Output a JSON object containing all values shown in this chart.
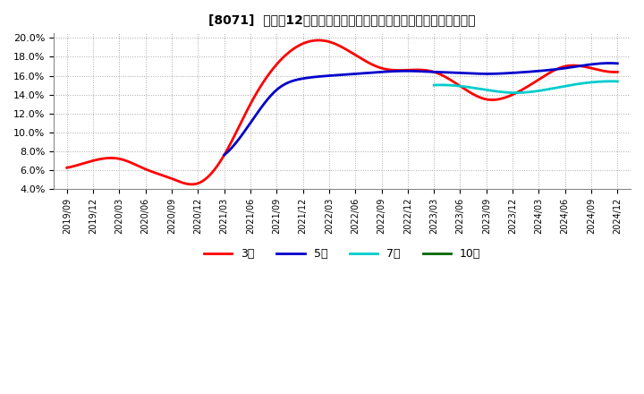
{
  "title": "[8071]  売上高12か月移動合計の対前年同期増減率の標準偏差の推移",
  "ylim": [
    0.04,
    0.205
  ],
  "yticks": [
    0.04,
    0.06,
    0.08,
    0.1,
    0.12,
    0.14,
    0.16,
    0.18,
    0.2
  ],
  "background_color": "#ffffff",
  "plot_bg_color": "#ffffff",
  "grid_color": "#aaaaaa",
  "series": {
    "3年": {
      "color": "#ff0000",
      "data": [
        [
          "2019/09",
          0.0625
        ],
        [
          "2019/12",
          0.07
        ],
        [
          "2020/03",
          0.072
        ],
        [
          "2020/06",
          0.061
        ],
        [
          "2020/09",
          0.051
        ],
        [
          "2020/12",
          0.046
        ],
        [
          "2021/03",
          0.076
        ],
        [
          "2021/06",
          0.13
        ],
        [
          "2021/09",
          0.172
        ],
        [
          "2021/12",
          0.194
        ],
        [
          "2022/03",
          0.196
        ],
        [
          "2022/06",
          0.182
        ],
        [
          "2022/09",
          0.168
        ],
        [
          "2022/12",
          0.166
        ],
        [
          "2023/03",
          0.164
        ],
        [
          "2023/06",
          0.149
        ],
        [
          "2023/09",
          0.135
        ],
        [
          "2023/12",
          0.14
        ],
        [
          "2024/03",
          0.156
        ],
        [
          "2024/06",
          0.17
        ],
        [
          "2024/09",
          0.168
        ],
        [
          "2024/12",
          0.164
        ]
      ]
    },
    "5年": {
      "color": "#0000cc",
      "data": [
        [
          "2021/03",
          0.076
        ],
        [
          "2021/06",
          0.11
        ],
        [
          "2021/09",
          0.145
        ],
        [
          "2021/12",
          0.157
        ],
        [
          "2022/03",
          0.16
        ],
        [
          "2022/06",
          0.162
        ],
        [
          "2022/09",
          0.164
        ],
        [
          "2022/12",
          0.165
        ],
        [
          "2023/03",
          0.164
        ],
        [
          "2023/06",
          0.163
        ],
        [
          "2023/09",
          0.162
        ],
        [
          "2023/12",
          0.163
        ],
        [
          "2024/03",
          0.165
        ],
        [
          "2024/06",
          0.168
        ],
        [
          "2024/09",
          0.172
        ],
        [
          "2024/12",
          0.173
        ]
      ]
    },
    "7年": {
      "color": "#00cccc",
      "data": [
        [
          "2023/03",
          0.15
        ],
        [
          "2023/06",
          0.149
        ],
        [
          "2023/09",
          0.145
        ],
        [
          "2023/12",
          0.142
        ],
        [
          "2024/03",
          0.144
        ],
        [
          "2024/06",
          0.149
        ],
        [
          "2024/09",
          0.153
        ],
        [
          "2024/12",
          0.154
        ]
      ]
    },
    "10年": {
      "color": "#006600",
      "data": []
    }
  },
  "xtick_labels": [
    "2019/09",
    "2019/12",
    "2020/03",
    "2020/06",
    "2020/09",
    "2020/12",
    "2021/03",
    "2021/06",
    "2021/09",
    "2021/12",
    "2022/03",
    "2022/06",
    "2022/09",
    "2022/12",
    "2023/03",
    "2023/06",
    "2023/09",
    "2023/12",
    "2024/03",
    "2024/06",
    "2024/09",
    "2024/12"
  ],
  "legend_labels": [
    "3年",
    "5年",
    "7年",
    "10年"
  ],
  "legend_colors": [
    "#ff0000",
    "#0000cc",
    "#00cccc",
    "#006600"
  ]
}
